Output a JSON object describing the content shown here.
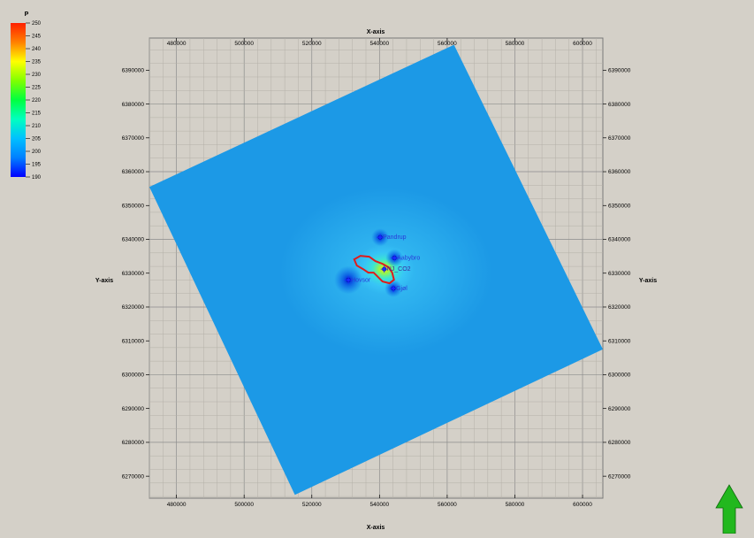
{
  "colorbar": {
    "title": "P",
    "ticks": [
      "250",
      "245",
      "240",
      "235",
      "230",
      "225",
      "220",
      "215",
      "210",
      "205",
      "200",
      "195",
      "190"
    ],
    "range": [
      190,
      250
    ],
    "colors": [
      "#0000ff",
      "#0080ff",
      "#00c0ff",
      "#00ffc0",
      "#00ff40",
      "#80ff00",
      "#ffff00",
      "#ff8000",
      "#ff2000"
    ]
  },
  "axes": {
    "xlabel_top": "X-axis",
    "xlabel_bottom": "X-axis",
    "ylabel_left": "Y-axis",
    "ylabel_right": "Y-axis",
    "xlim": [
      472000,
      606000
    ],
    "ylim": [
      6263500,
      6399500
    ],
    "xticks": [
      480000,
      500000,
      520000,
      540000,
      560000,
      580000,
      600000
    ],
    "yticks": [
      6390000,
      6380000,
      6370000,
      6360000,
      6350000,
      6340000,
      6330000,
      6320000,
      6310000,
      6300000,
      6290000,
      6280000,
      6270000
    ],
    "xtick_labels": [
      "480000",
      "500000",
      "520000",
      "540000",
      "560000",
      "580000",
      "600000"
    ],
    "ytick_labels": [
      "6390000",
      "6380000",
      "6370000",
      "6360000",
      "6350000",
      "6340000",
      "6330000",
      "6320000",
      "6310000",
      "6300000",
      "6290000",
      "6280000",
      "6270000"
    ]
  },
  "grid": {
    "minor_step": 4000
  },
  "model": {
    "fill_color": "#1c99e6",
    "corners": [
      [
        472000,
        6355500
      ],
      [
        562000,
        6397500
      ],
      [
        606000,
        6307500
      ],
      [
        515000,
        6264500
      ]
    ]
  },
  "wells": [
    {
      "name": "Pandrup",
      "x": 540200,
      "y": 6340600
    },
    {
      "name": "Aabybro",
      "x": 544400,
      "y": 6334500
    },
    {
      "name": "NJ_CO2",
      "x": 541400,
      "y": 6331200
    },
    {
      "name": "Gjøl",
      "x": 544100,
      "y": 6325500
    },
    {
      "name": "Hovsor",
      "x": 530800,
      "y": 6328000
    }
  ],
  "co2_outline_color": "#e01b1b",
  "north_arrow_color": "#22b81e"
}
